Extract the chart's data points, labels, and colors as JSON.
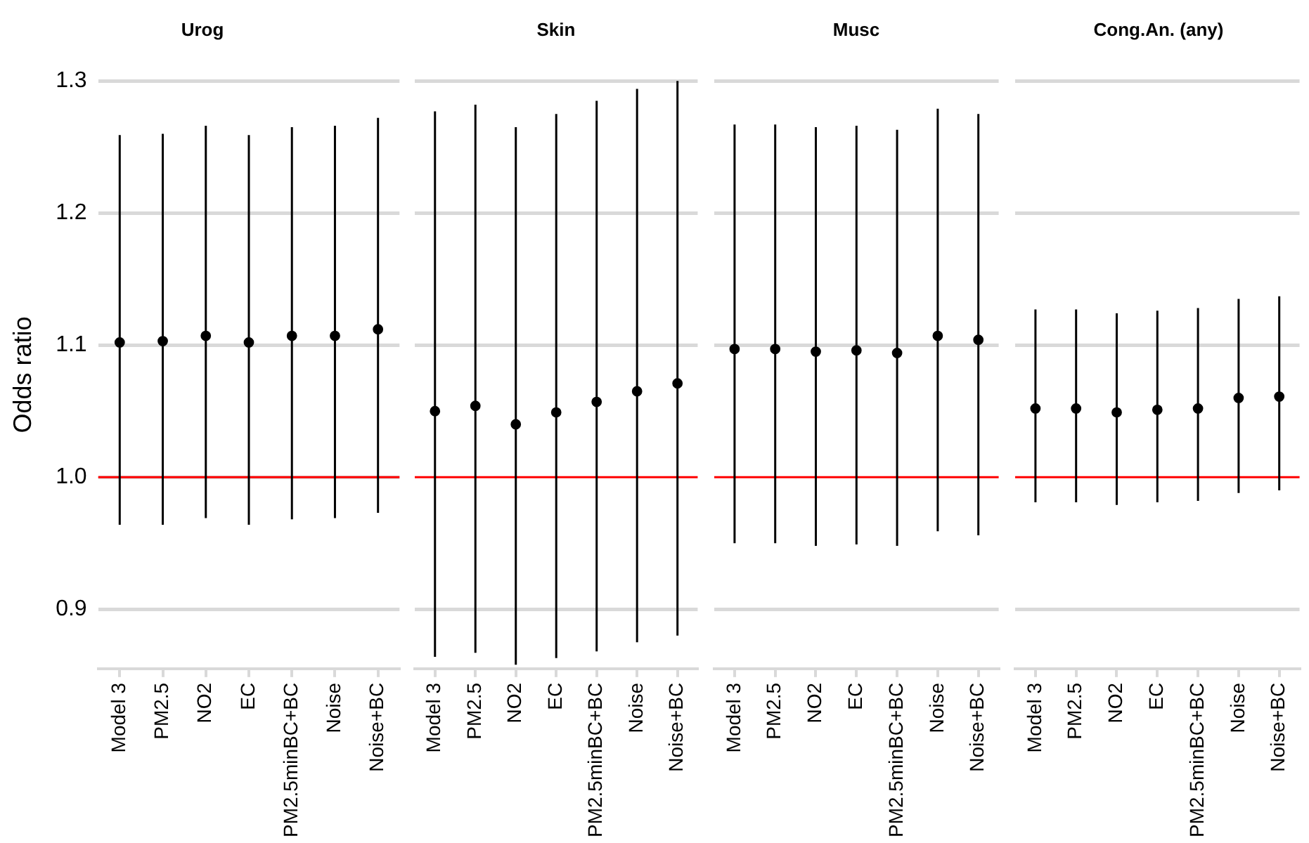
{
  "chart_data": [
    {
      "type": "scatter",
      "title": "Urog",
      "ylabel": "Odds ratio",
      "categories": [
        "Model 3",
        "PM2.5",
        "NO2",
        "EC",
        "PM2.5minBC+BC",
        "Noise",
        "Noise+BC"
      ],
      "series": [
        {
          "color": "#000000",
          "values": [
            1.102,
            1.103,
            1.107,
            1.102,
            1.107,
            1.107,
            1.112
          ],
          "errors": [
            [
              0.964,
              1.259
            ],
            [
              0.964,
              1.26
            ],
            [
              0.969,
              1.266
            ],
            [
              0.964,
              1.259
            ],
            [
              0.968,
              1.265
            ],
            [
              0.969,
              1.266
            ],
            [
              0.973,
              1.272
            ]
          ]
        }
      ],
      "ylim": [
        0.855,
        1.3
      ],
      "yticks": [
        0.9,
        {
          "value": 1,
          "label": "1.0"
        },
        1.1,
        1.2,
        1.3
      ],
      "grid": "y",
      "legend": false,
      "marker": "circle",
      "ref_lines": [
        {
          "axis": "y",
          "value": 1,
          "color": "#ff0000"
        }
      ]
    },
    {
      "type": "scatter",
      "title": "Skin",
      "categories": [
        "Model 3",
        "PM2.5",
        "NO2",
        "EC",
        "PM2.5minBC+BC",
        "Noise",
        "Noise+BC"
      ],
      "series": [
        {
          "color": "#000000",
          "values": [
            1.05,
            1.054,
            1.04,
            1.049,
            1.057,
            1.065,
            1.071
          ],
          "errors": [
            [
              0.864,
              1.277
            ],
            [
              0.867,
              1.282
            ],
            [
              0.858,
              1.265
            ],
            [
              0.863,
              1.275
            ],
            [
              0.868,
              1.285
            ],
            [
              0.875,
              1.294
            ],
            [
              0.88,
              1.3
            ]
          ]
        }
      ],
      "ylim": [
        0.855,
        1.3
      ],
      "yticks": [
        0.9,
        1.1,
        1.2,
        1.3
      ],
      "grid": "y",
      "legend": false,
      "marker": "circle",
      "tick_labels": "x",
      "ref_lines": [
        {
          "axis": "y",
          "value": 1,
          "color": "#ff0000"
        }
      ]
    },
    {
      "type": "scatter",
      "title": "Musc",
      "categories": [
        "Model 3",
        "PM2.5",
        "NO2",
        "EC",
        "PM2.5minBC+BC",
        "Noise",
        "Noise+BC"
      ],
      "series": [
        {
          "color": "#000000",
          "values": [
            1.097,
            1.097,
            1.095,
            1.096,
            1.094,
            1.107,
            1.104
          ],
          "errors": [
            [
              0.95,
              1.267
            ],
            [
              0.95,
              1.267
            ],
            [
              0.948,
              1.265
            ],
            [
              0.949,
              1.266
            ],
            [
              0.948,
              1.263
            ],
            [
              0.959,
              1.279
            ],
            [
              0.956,
              1.275
            ]
          ]
        }
      ],
      "ylim": [
        0.855,
        1.3
      ],
      "yticks": [
        0.9,
        1.1,
        1.2,
        1.3
      ],
      "grid": "y",
      "legend": false,
      "marker": "circle",
      "tick_labels": "x",
      "ref_lines": [
        {
          "axis": "y",
          "value": 1,
          "color": "#ff0000"
        }
      ]
    },
    {
      "type": "scatter",
      "title": "Cong.An. (any)",
      "categories": [
        "Model 3",
        "PM2.5",
        "NO2",
        "EC",
        "PM2.5minBC+BC",
        "Noise",
        "Noise+BC"
      ],
      "series": [
        {
          "color": "#000000",
          "values": [
            1.052,
            1.052,
            1.049,
            1.051,
            1.052,
            1.06,
            1.061
          ],
          "errors": [
            [
              0.981,
              1.127
            ],
            [
              0.981,
              1.127
            ],
            [
              0.979,
              1.124
            ],
            [
              0.981,
              1.126
            ],
            [
              0.982,
              1.128
            ],
            [
              0.988,
              1.135
            ],
            [
              0.99,
              1.137
            ]
          ]
        }
      ],
      "ylim": [
        0.855,
        1.3
      ],
      "yticks": [
        0.9,
        1.1,
        1.2,
        1.3
      ],
      "grid": "y",
      "legend": false,
      "marker": "circle",
      "tick_labels": "x",
      "ref_lines": [
        {
          "axis": "y",
          "value": 1,
          "color": "#ff0000"
        }
      ]
    }
  ]
}
